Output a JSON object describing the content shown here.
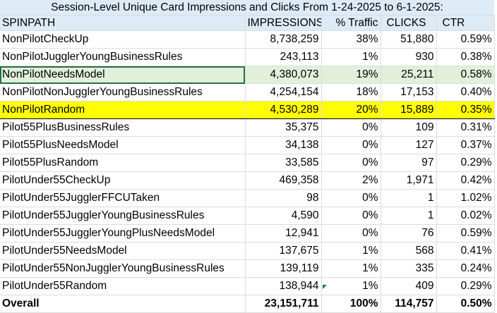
{
  "title": "Session-Level Unique Card Impressions and Clicks From 1-24-2025 to 6-1-2025:",
  "headers": [
    "SPINPATH",
    "IMPRESSIONS",
    "% Traffic",
    "CLICKS",
    "CTR"
  ],
  "rows": [
    {
      "path": "NonPilotCheckUp",
      "impressions": "8,738,259",
      "traffic": "38%",
      "clicks": "51,880",
      "ctr": "0.59%"
    },
    {
      "path": "NonPilotJugglerYoungBusinessRules",
      "impressions": "243,113",
      "traffic": "1%",
      "clicks": "930",
      "ctr": "0.38%"
    },
    {
      "path": "NonPilotNeedsModel",
      "impressions": "4,380,073",
      "traffic": "19%",
      "clicks": "25,211",
      "ctr": "0.58%"
    },
    {
      "path": "NonPilotNonJugglerYoungBusinessRules",
      "impressions": "4,254,154",
      "traffic": "18%",
      "clicks": "17,153",
      "ctr": "0.40%"
    },
    {
      "path": "NonPilotRandom",
      "impressions": "4,530,289",
      "traffic": "20%",
      "clicks": "15,889",
      "ctr": "0.35%"
    },
    {
      "path": "Pilot55PlusBusinessRules",
      "impressions": "35,375",
      "traffic": "0%",
      "clicks": "109",
      "ctr": "0.31%"
    },
    {
      "path": "Pilot55PlusNeedsModel",
      "impressions": "34,138",
      "traffic": "0%",
      "clicks": "127",
      "ctr": "0.37%"
    },
    {
      "path": "Pilot55PlusRandom",
      "impressions": "33,585",
      "traffic": "0%",
      "clicks": "97",
      "ctr": "0.29%"
    },
    {
      "path": "PilotUnder55CheckUp",
      "impressions": "469,358",
      "traffic": "2%",
      "clicks": "1,971",
      "ctr": "0.42%"
    },
    {
      "path": "PilotUnder55JugglerFFCUTaken",
      "impressions": "98",
      "traffic": "0%",
      "clicks": "1",
      "ctr": "1.02%"
    },
    {
      "path": "PilotUnder55JugglerYoungBusinessRules",
      "impressions": "4,590",
      "traffic": "0%",
      "clicks": "1",
      "ctr": "0.02%"
    },
    {
      "path": "PilotUnder55JugglerYoungPlusNeedsModel",
      "impressions": "12,941",
      "traffic": "0%",
      "clicks": "76",
      "ctr": "0.59%"
    },
    {
      "path": "PilotUnder55NeedsModel",
      "impressions": "137,675",
      "traffic": "1%",
      "clicks": "568",
      "ctr": "0.41%"
    },
    {
      "path": "PilotUnder55NonJugglerYoungBusinessRules",
      "impressions": "139,119",
      "traffic": "1%",
      "clicks": "335",
      "ctr": "0.24%"
    },
    {
      "path": "PilotUnder55Random",
      "impressions": "138,944",
      "traffic": "1%",
      "clicks": "409",
      "ctr": "0.29%"
    }
  ],
  "overall": {
    "path": "Overall",
    "impressions": "23,151,711",
    "traffic": "100%",
    "clicks": "114,757",
    "ctr": "0.50%"
  },
  "colors": {
    "header_bg": "#ddebf7",
    "selected_bg": "#e2efda",
    "highlight_bg": "#ffff00",
    "selection_border": "#217346"
  }
}
